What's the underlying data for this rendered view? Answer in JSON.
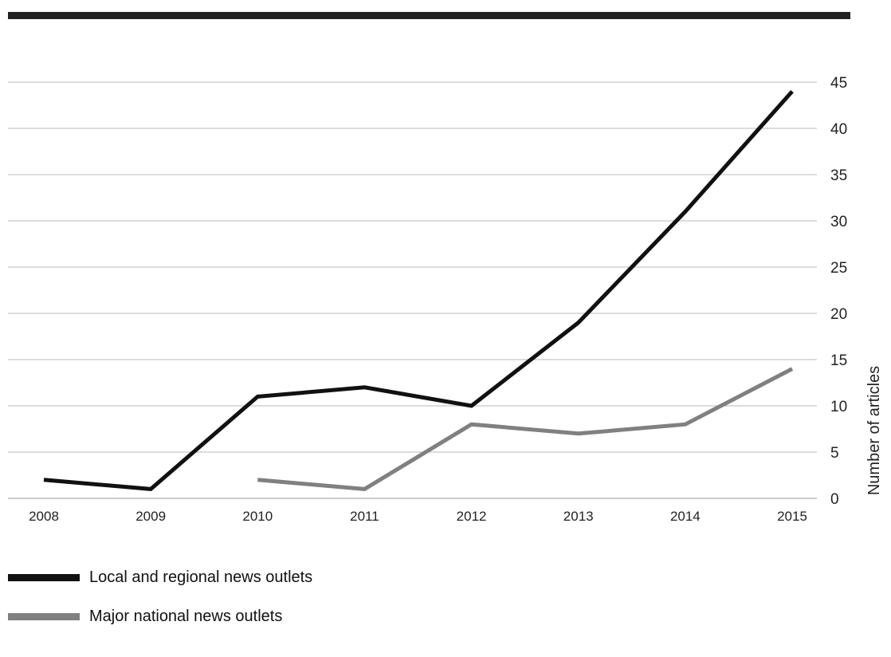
{
  "chart_data": {
    "type": "line",
    "title": "",
    "xlabel": "",
    "ylabel": "Number of articles",
    "x": [
      2008,
      2009,
      2010,
      2011,
      2012,
      2013,
      2014,
      2015
    ],
    "ylim": [
      0,
      45
    ],
    "yticks": [
      0,
      5,
      10,
      15,
      20,
      25,
      30,
      35,
      40,
      45
    ],
    "grid": true,
    "legend_position": "bottom-left",
    "series": [
      {
        "name": "Local and regional news outlets",
        "color": "#111111",
        "values": [
          2,
          1,
          11,
          12,
          10,
          19,
          31,
          44
        ]
      },
      {
        "name": "Major national news outlets",
        "color": "#808080",
        "values": [
          null,
          null,
          2,
          1,
          8,
          7,
          8,
          14
        ]
      }
    ]
  }
}
